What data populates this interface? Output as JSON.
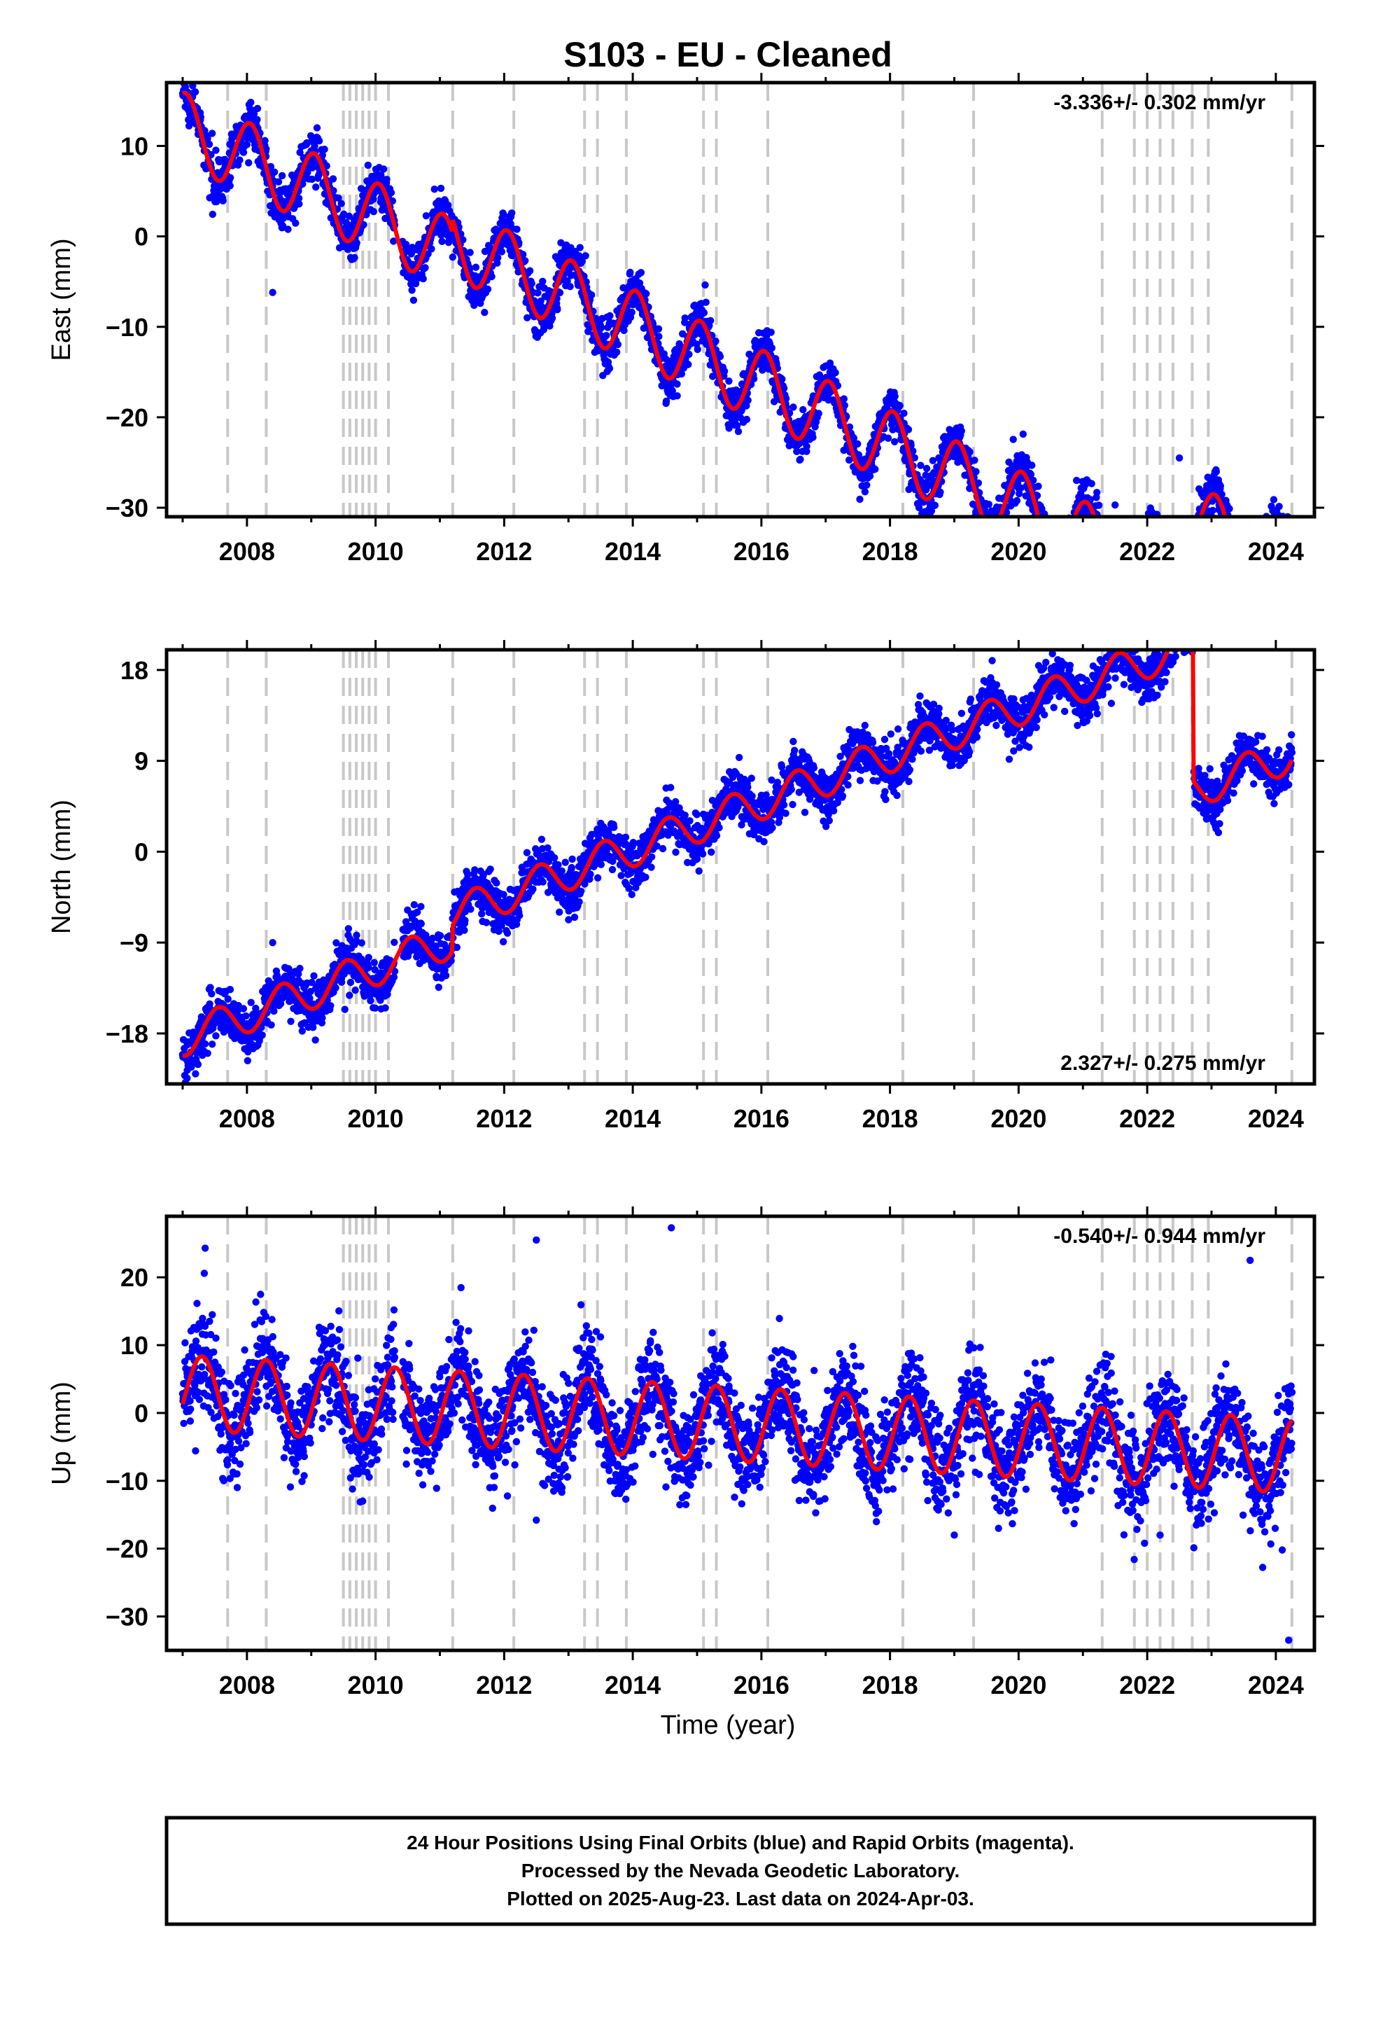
{
  "title": "S103  - EU - Cleaned",
  "xlabel": "Time (year)",
  "footer": {
    "line1": "24 Hour Positions Using Final Orbits (blue) and Rapid Orbits (magenta).",
    "line2": "Processed by the Nevada Geodetic Laboratory.",
    "line3": "Plotted on 2025-Aug-23. Last data on 2024-Apr-03."
  },
  "colors": {
    "points": "#0000ff",
    "model": "#ff0000",
    "steps": "#c8c8c8",
    "frame": "#000000"
  },
  "chart_data": [
    {
      "type": "scatter",
      "name": "east",
      "ylabel": "East (mm)",
      "rate_text": "-3.336+/- 0.302 mm/yr",
      "rate_position": "top-right",
      "xlim": [
        2006.75,
        2024.6
      ],
      "ylim": [
        -31,
        17
      ],
      "xticks": [
        2008,
        2010,
        2012,
        2014,
        2016,
        2018,
        2020,
        2022,
        2024
      ],
      "yticks": [
        -30,
        -20,
        -10,
        0,
        10
      ],
      "model": {
        "start": 2007.0,
        "end": 2024.25,
        "intercept": 12.0,
        "rate": -3.336,
        "annual_amp": 4.0,
        "phase": 0.05,
        "noise": 1.3,
        "offsets": [
          {
            "t": 2011.2,
            "dy": 1.5
          },
          {
            "t": 2022.75,
            "dy": 7.5
          }
        ]
      },
      "outliers": [
        [
          2008.4,
          -6.2
        ],
        [
          2012.4,
          -3.8
        ],
        [
          2021.5,
          -29.7
        ],
        [
          2022.5,
          -24.5
        ]
      ]
    },
    {
      "type": "scatter",
      "name": "north",
      "ylabel": "North (mm)",
      "rate_text": "2.327+/- 0.275 mm/yr",
      "rate_position": "bottom-right",
      "xlim": [
        2006.75,
        2024.6
      ],
      "ylim": [
        -23,
        20
      ],
      "xticks": [
        2008,
        2010,
        2012,
        2014,
        2016,
        2018,
        2020,
        2022,
        2024
      ],
      "yticks": [
        -18,
        -9,
        0,
        9,
        18
      ],
      "model": {
        "start": 2007.0,
        "end": 2024.25,
        "intercept": -18.5,
        "rate": 2.327,
        "annual_amp": 1.8,
        "phase": 0.55,
        "noise": 1.2,
        "offsets": [
          {
            "t": 2011.2,
            "dy": 2.5
          },
          {
            "t": 2022.72,
            "dy": -14.5
          }
        ]
      },
      "outliers": [
        [
          2008.4,
          -9.0
        ],
        [
          2021.5,
          19.5
        ],
        [
          2007.2,
          -22.0
        ]
      ]
    },
    {
      "type": "scatter",
      "name": "up",
      "ylabel": "Up (mm)",
      "rate_text": "-0.540+/- 0.944 mm/yr",
      "rate_position": "top-right",
      "xlim": [
        2006.75,
        2024.6
      ],
      "ylim": [
        -35,
        29
      ],
      "xticks": [
        2008,
        2010,
        2012,
        2014,
        2016,
        2018,
        2020,
        2022,
        2024
      ],
      "yticks": [
        -30,
        -20,
        -10,
        0,
        10,
        20
      ],
      "model": {
        "start": 2007.0,
        "end": 2024.25,
        "intercept": 3.0,
        "rate": -0.54,
        "annual_amp": 5.5,
        "phase": 0.3,
        "noise": 3.6,
        "offsets": []
      },
      "outliers": [
        [
          2007.35,
          24.3
        ],
        [
          2012.5,
          25.5
        ],
        [
          2014.6,
          27.3
        ],
        [
          2023.6,
          22.5
        ],
        [
          2024.2,
          -33.5
        ],
        [
          2024.1,
          -20.2
        ],
        [
          2009.8,
          -13.0
        ],
        [
          2012.5,
          -15.8
        ],
        [
          2019.0,
          -18.0
        ],
        [
          2022.2,
          -18.0
        ]
      ]
    }
  ],
  "step_dates": [
    2007.7,
    2008.3,
    2009.5,
    2009.6,
    2009.7,
    2009.8,
    2009.9,
    2010.0,
    2010.2,
    2011.2,
    2012.15,
    2013.25,
    2013.45,
    2013.9,
    2015.1,
    2015.3,
    2016.1,
    2018.2,
    2019.3,
    2021.3,
    2021.8,
    2022.0,
    2022.2,
    2022.4,
    2022.7,
    2022.95,
    2024.25
  ]
}
